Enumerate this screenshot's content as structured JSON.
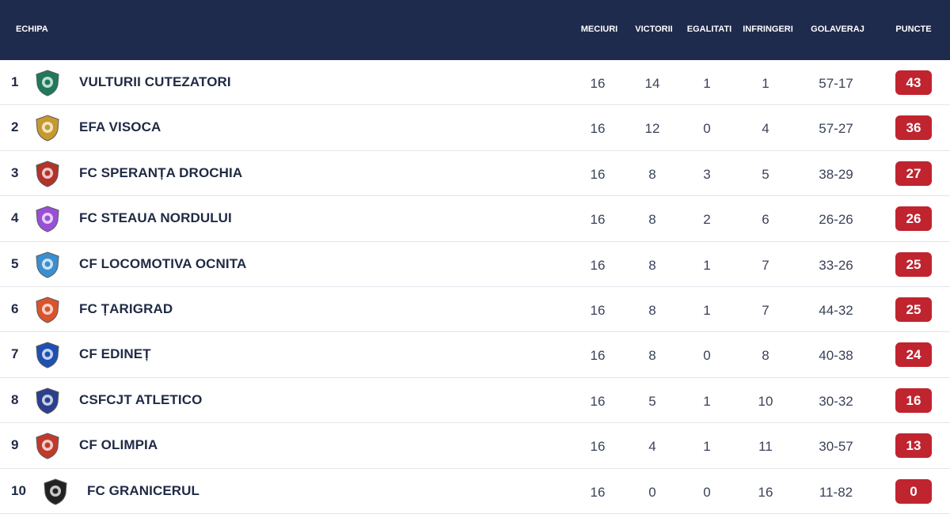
{
  "header": {
    "team": "ECHIPA",
    "played": "MECIURI",
    "wins": "VICTORII",
    "draws": "EGALITATI",
    "losses": "INFRINGERI",
    "goal_diff": "GOLAVERAJ",
    "points": "PUNCTE"
  },
  "rows": [
    {
      "pos": "1",
      "name": "VULTURII CUTEZATORI",
      "played": "16",
      "wins": "14",
      "draws": "1",
      "losses": "1",
      "goals": "57-17",
      "points": "43",
      "logo": "vulturii-logo-icon",
      "logo_color": "#1e7a5a"
    },
    {
      "pos": "2",
      "name": "EFA VISOCA",
      "played": "16",
      "wins": "12",
      "draws": "0",
      "losses": "4",
      "goals": "57-27",
      "points": "36",
      "logo": "visoca-logo-icon",
      "logo_color": "#c79a2e"
    },
    {
      "pos": "3",
      "name": "FC SPERANȚA DROCHIA",
      "played": "16",
      "wins": "8",
      "draws": "3",
      "losses": "5",
      "goals": "38-29",
      "points": "27",
      "logo": "speranta-logo-icon",
      "logo_color": "#b3322a"
    },
    {
      "pos": "4",
      "name": "FC STEAUA NORDULUI",
      "played": "16",
      "wins": "8",
      "draws": "2",
      "losses": "6",
      "goals": "26-26",
      "points": "26",
      "logo": "steaua-logo-icon",
      "logo_color": "#9a4fd6"
    },
    {
      "pos": "5",
      "name": "CF LOCOMOTIVA OCNITA",
      "played": "16",
      "wins": "8",
      "draws": "1",
      "losses": "7",
      "goals": "33-26",
      "points": "25",
      "logo": "locomotiva-logo-icon",
      "logo_color": "#3a8fd0"
    },
    {
      "pos": "6",
      "name": "FC ȚARIGRAD",
      "played": "16",
      "wins": "8",
      "draws": "1",
      "losses": "7",
      "goals": "44-32",
      "points": "25",
      "logo": "tarigrad-logo-icon",
      "logo_color": "#d9532c"
    },
    {
      "pos": "7",
      "name": "CF EDINEȚ",
      "played": "16",
      "wins": "8",
      "draws": "0",
      "losses": "8",
      "goals": "40-38",
      "points": "24",
      "logo": "edinet-logo-icon",
      "logo_color": "#1f4fb3"
    },
    {
      "pos": "8",
      "name": "CSFCJT ATLETICO",
      "played": "16",
      "wins": "5",
      "draws": "1",
      "losses": "10",
      "goals": "30-32",
      "points": "16",
      "logo": "atletico-logo-icon",
      "logo_color": "#2b3f8f"
    },
    {
      "pos": "9",
      "name": "CF OLIMPIA",
      "played": "16",
      "wins": "4",
      "draws": "1",
      "losses": "11",
      "goals": "30-57",
      "points": "13",
      "logo": "olimpia-logo-icon",
      "logo_color": "#c0392b"
    },
    {
      "pos": "10",
      "name": "FC GRANICERUL",
      "played": "16",
      "wins": "0",
      "draws": "0",
      "losses": "16",
      "goals": "11-82",
      "points": "0",
      "logo": "granicerul-logo-icon",
      "logo_color": "#222222"
    }
  ],
  "colors": {
    "header_bg": "#1f2b4d",
    "points_badge": "#c0242f"
  }
}
